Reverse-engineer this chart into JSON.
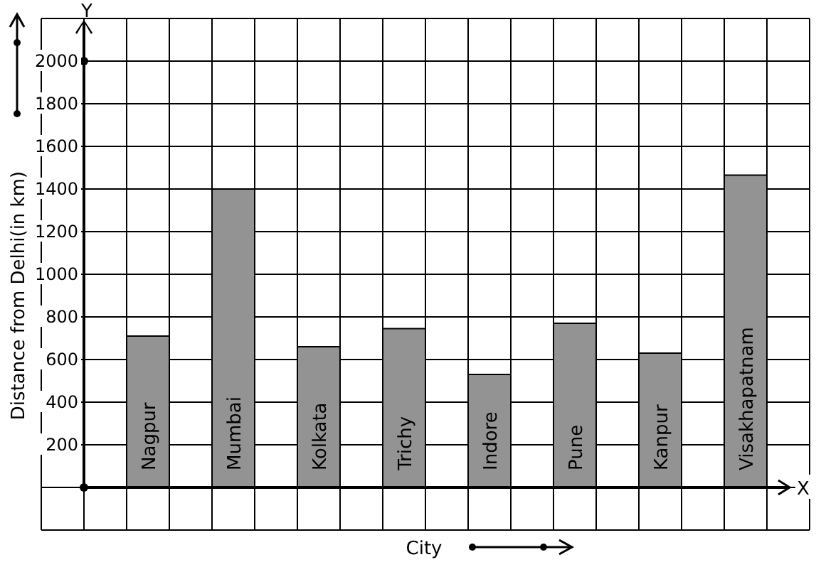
{
  "chart_data": {
    "type": "bar",
    "xlabel": "City",
    "ylabel": "Distance from Delhi(in km)",
    "categories": [
      "Nagpur",
      "Mumbai",
      "Kolkata",
      "Trichy",
      "Indore",
      "Pune",
      "Kanpur",
      "Visakhapatnam"
    ],
    "values": [
      710,
      1400,
      660,
      745,
      530,
      770,
      630,
      1465
    ],
    "color": "#939393",
    "ylim": [
      -200,
      2200
    ],
    "yticks": [
      200,
      400,
      600,
      800,
      1000,
      1200,
      1400,
      1600,
      1800,
      2000
    ],
    "grid": true,
    "annotations": [
      "X",
      "Y"
    ]
  }
}
